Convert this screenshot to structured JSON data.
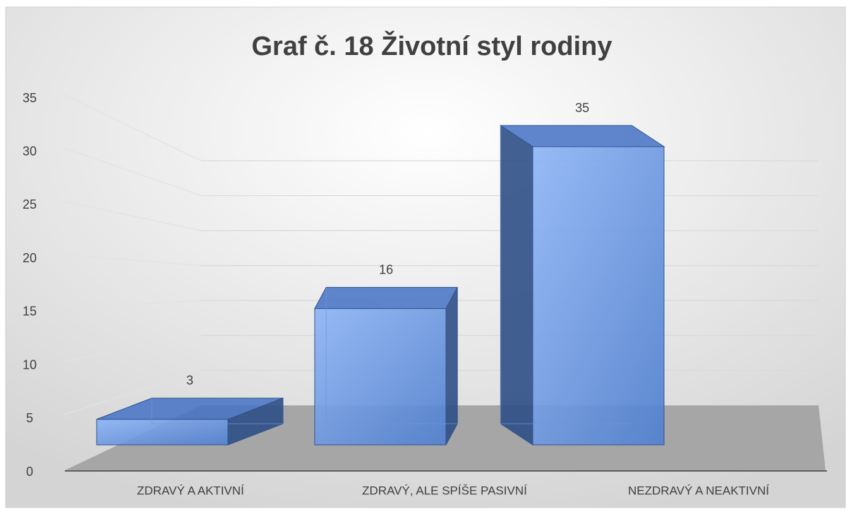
{
  "chart_data": {
    "type": "bar3d",
    "title": "Graf č. 18 Životní styl rodiny",
    "categories": [
      "ZDRAVÝ A AKTIVNÍ",
      "ZDRAVÝ, ALE SPÍŠE PASIVNÍ",
      "NEZDRAVÝ A NEAKTIVNÍ"
    ],
    "values": [
      3,
      16,
      35
    ],
    "color": "#4472c4",
    "ylim": [
      0,
      35
    ],
    "yticks": [
      0,
      5,
      10,
      15,
      20,
      25,
      30,
      35
    ],
    "grid": true
  }
}
